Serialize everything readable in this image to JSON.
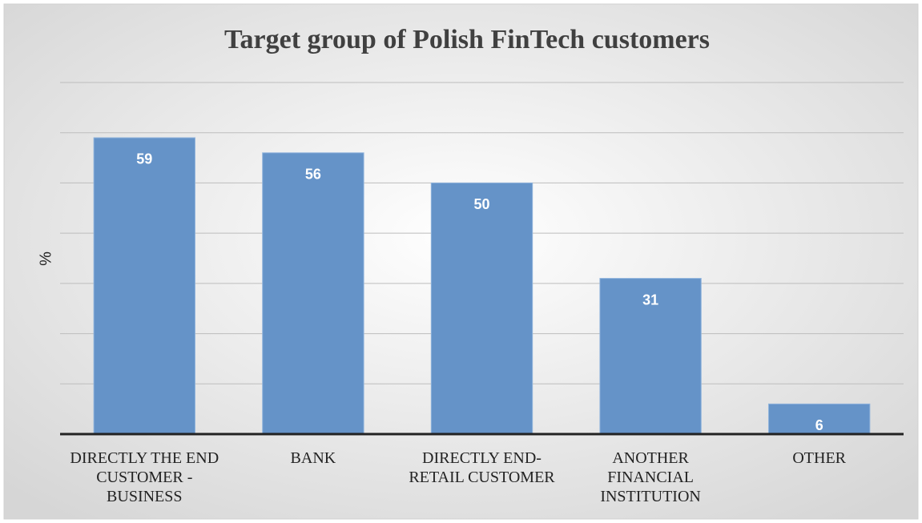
{
  "chart_data": {
    "type": "bar",
    "title": "Target group of Polish FinTech customers",
    "y_label": "%",
    "categories": [
      "DIRECTLY THE END CUSTOMER - BUSINESS",
      "BANK",
      "DIRECTLY END-RETAIL CUSTOMER",
      "ANOTHER FINANCIAL INSTITUTION",
      "OTHER"
    ],
    "values": [
      59,
      56,
      50,
      31,
      6
    ],
    "color": "#6593c8",
    "ylim": [
      0,
      70
    ],
    "yticks": [
      0,
      10,
      20,
      30,
      40,
      50,
      60,
      70
    ],
    "grid": true
  }
}
